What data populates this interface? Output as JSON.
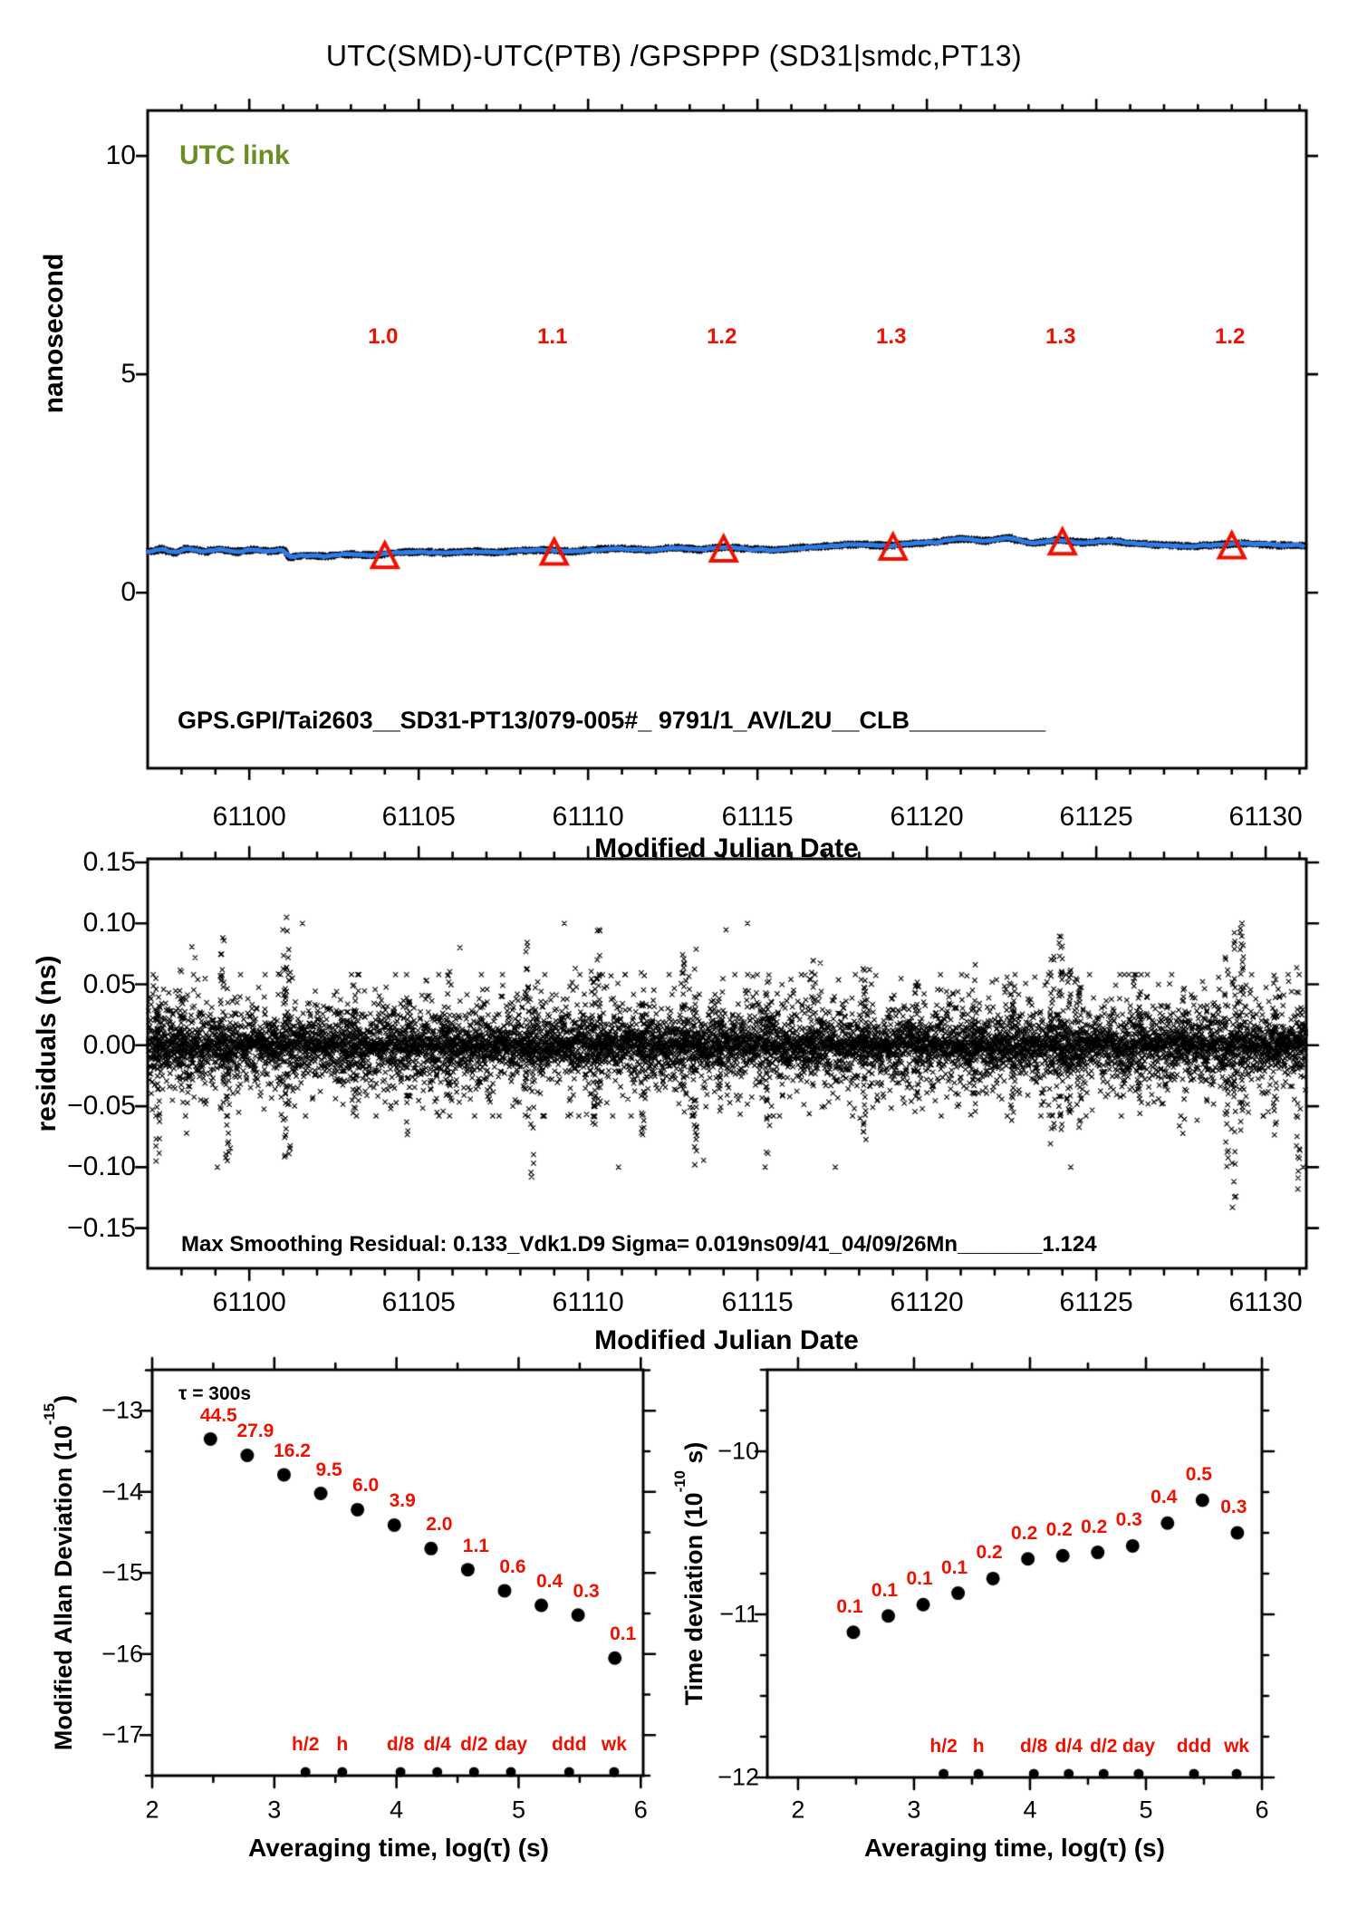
{
  "page_title": "UTC(SMD)-UTC(PTB)  /GPSPPP  (SD31|smdc,PT13)",
  "colors": {
    "accent_red": "#ee1100",
    "line_blue": "#2d7ceb",
    "utc_link_green": "#6b8e23",
    "ink": "#000000",
    "background": "#ffffff"
  },
  "chart_data": [
    {
      "id": "utc-link-trace",
      "type": "line",
      "ylabel": "nanosecond",
      "xlabel": "Modified Julian Date",
      "xlim": [
        61097.0,
        61131.2
      ],
      "ylim": [
        -4.0,
        11.0
      ],
      "xticks": [
        61100,
        61105,
        61110,
        61115,
        61120,
        61125,
        61130
      ],
      "xtick_labels": [
        "61100",
        "61105",
        "61110",
        "61115",
        "61120",
        "61125",
        "61130"
      ],
      "yticks": [
        0,
        5,
        10
      ],
      "ytick_labels": [
        "0",
        "5",
        "10"
      ],
      "annotations": {
        "utc_link": "UTC link",
        "gps_line": "GPS.GPI/Tai2603__SD31-PT13/079-005#_  9791/1_AV/L2U__CLB__________"
      },
      "calibration": {
        "mjd": [
          61104,
          61109,
          61114,
          61119,
          61124,
          61129
        ],
        "labels": [
          "1.0",
          "1.1",
          "1.2",
          "1.3",
          "1.3",
          "1.2"
        ],
        "label_y_ns": 5.85,
        "marker": "open-red-triangle-up"
      },
      "line_anchors": [
        [
          61097.0,
          0.93
        ],
        [
          61097.4,
          1.0
        ],
        [
          61097.8,
          0.92
        ],
        [
          61098.2,
          1.01
        ],
        [
          61098.7,
          0.94
        ],
        [
          61099.1,
          1.0
        ],
        [
          61099.6,
          0.93
        ],
        [
          61100.1,
          0.99
        ],
        [
          61100.6,
          0.95
        ],
        [
          61101.05,
          0.98
        ],
        [
          61101.15,
          0.81
        ],
        [
          61101.6,
          0.86
        ],
        [
          61102.2,
          0.83
        ],
        [
          61102.8,
          0.88
        ],
        [
          61103.6,
          0.86
        ],
        [
          61104.3,
          0.91
        ],
        [
          61105.0,
          0.94
        ],
        [
          61105.8,
          0.91
        ],
        [
          61106.5,
          0.95
        ],
        [
          61107.3,
          0.92
        ],
        [
          61108.0,
          0.96
        ],
        [
          61108.8,
          0.98
        ],
        [
          61109.5,
          0.94
        ],
        [
          61110.2,
          0.99
        ],
        [
          61111.0,
          1.01
        ],
        [
          61111.8,
          0.97
        ],
        [
          61112.6,
          1.03
        ],
        [
          61113.3,
          0.99
        ],
        [
          61114.0,
          1.04
        ],
        [
          61114.8,
          1.0
        ],
        [
          61115.5,
          0.97
        ],
        [
          61116.3,
          1.03
        ],
        [
          61117.1,
          1.07
        ],
        [
          61118.0,
          1.11
        ],
        [
          61118.8,
          1.07
        ],
        [
          61119.5,
          1.12
        ],
        [
          61120.3,
          1.16
        ],
        [
          61121.0,
          1.24
        ],
        [
          61121.7,
          1.18
        ],
        [
          61122.4,
          1.26
        ],
        [
          61123.1,
          1.13
        ],
        [
          61123.9,
          1.21
        ],
        [
          61124.6,
          1.14
        ],
        [
          61125.4,
          1.19
        ],
        [
          61126.2,
          1.12
        ],
        [
          61127.0,
          1.09
        ],
        [
          61127.8,
          1.06
        ],
        [
          61128.6,
          1.1
        ],
        [
          61129.4,
          1.13
        ],
        [
          61130.2,
          1.09
        ],
        [
          61131.2,
          1.08
        ]
      ],
      "noise_band_sigma_ns": 0.013
    },
    {
      "id": "residuals",
      "type": "scatter",
      "ylabel": "residuals (ns)",
      "xlabel": "Modified Julian Date",
      "xlim": [
        61097.0,
        61131.2
      ],
      "ylim": [
        -0.183,
        0.153
      ],
      "xticks": [
        61100,
        61105,
        61110,
        61115,
        61120,
        61125,
        61130
      ],
      "xtick_labels": [
        "61100",
        "61105",
        "61110",
        "61115",
        "61120",
        "61125",
        "61130"
      ],
      "yticks": [
        0.15,
        0.1,
        0.05,
        0.0,
        -0.05,
        -0.1,
        -0.15
      ],
      "ytick_labels": [
        "0.15",
        "0.10",
        "0.05",
        "0.00",
        "−0.05",
        "−0.10",
        "−0.15"
      ],
      "annotations": {
        "note": "Max Smoothing Residual: 0.133_Vdk1.D9  Sigma= 0.019ns09/41_04/09/26Mn_______1.124"
      },
      "sigma_ns": 0.019,
      "max_smoothing_residual_ns": 0.133,
      "marker": "x",
      "outlier_columns": [
        [
          61097.3,
          -0.09,
          0.06
        ],
        [
          61098.0,
          -0.05,
          0.062
        ],
        [
          61099.2,
          -0.055,
          0.09
        ],
        [
          61099.35,
          -0.1,
          0.05
        ],
        [
          61101.05,
          -0.115,
          0.105
        ],
        [
          61101.15,
          -0.09,
          0.1
        ],
        [
          61103.1,
          -0.06,
          0.05
        ],
        [
          61104.7,
          -0.075,
          0.05
        ],
        [
          61105.9,
          -0.05,
          0.065
        ],
        [
          61108.2,
          -0.06,
          0.09
        ],
        [
          61108.35,
          -0.11,
          0.06
        ],
        [
          61110.15,
          -0.065,
          0.065
        ],
        [
          61110.3,
          -0.05,
          0.095
        ],
        [
          61111.6,
          -0.075,
          0.06
        ],
        [
          61112.8,
          -0.06,
          0.075
        ],
        [
          61113.15,
          -0.1,
          0.09
        ],
        [
          61113.9,
          -0.055,
          0.05
        ],
        [
          61115.3,
          -0.09,
          0.06
        ],
        [
          61116.6,
          -0.055,
          0.075
        ],
        [
          61118.15,
          -0.08,
          0.065
        ],
        [
          61119.7,
          -0.06,
          0.055
        ],
        [
          61121.4,
          -0.05,
          0.07
        ],
        [
          61122.55,
          -0.065,
          0.06
        ],
        [
          61123.7,
          -0.085,
          0.075
        ],
        [
          61123.95,
          -0.07,
          0.09
        ],
        [
          61124.2,
          -0.06,
          0.065
        ],
        [
          61124.5,
          -0.09,
          0.05
        ],
        [
          61126.3,
          -0.05,
          0.06
        ],
        [
          61127.6,
          -0.085,
          0.055
        ],
        [
          61128.85,
          -0.1,
          0.075
        ],
        [
          61129.05,
          -0.13,
          0.1
        ],
        [
          61129.3,
          -0.08,
          0.1
        ],
        [
          61130.3,
          -0.075,
          0.06
        ],
        [
          61130.95,
          -0.12,
          0.065
        ]
      ],
      "extreme_points": [
        [
          61129.02,
          -0.133
        ],
        [
          61129.12,
          -0.124
        ],
        [
          61130.95,
          -0.118
        ],
        [
          61101.1,
          0.105
        ],
        [
          61129.3,
          0.1
        ],
        [
          61108.33,
          -0.108
        ],
        [
          61097.25,
          -0.095
        ],
        [
          61113.15,
          -0.098
        ]
      ]
    },
    {
      "id": "mdev",
      "type": "scatter",
      "ylabel_prefix": "Modified Allan Deviation (10",
      "ylabel_sup": "-15",
      "ylabel_suffix": ")",
      "xlabel": "Averaging time, log(τ) (s)",
      "xlim": [
        2.0,
        6.02
      ],
      "ylim": [
        -17.5,
        -12.5
      ],
      "xticks": [
        2,
        3,
        4,
        5,
        6
      ],
      "xtick_labels": [
        "2",
        "3",
        "4",
        "5",
        "6"
      ],
      "yticks": [
        -13,
        -14,
        -15,
        -16,
        -17
      ],
      "ytick_labels": [
        "−13",
        "−14",
        "−15",
        "−16",
        "−17"
      ],
      "annotations": {
        "tau_note": "τ = 300s"
      },
      "tau_s": [
        300,
        600,
        1200,
        2400,
        4800,
        9600,
        19200,
        38400,
        76800,
        153600,
        307200,
        614400
      ],
      "log_tau": [
        2.477,
        2.778,
        3.079,
        3.38,
        3.681,
        3.982,
        4.283,
        4.584,
        4.885,
        5.186,
        5.487,
        5.788
      ],
      "mdev_1e15": [
        44.5,
        27.9,
        16.2,
        9.5,
        6.0,
        3.9,
        2.0,
        1.1,
        0.6,
        0.4,
        0.3,
        0.1
      ],
      "point_labels": [
        "44.5",
        "27.9",
        "16.2",
        "9.5",
        "6.0",
        "3.9",
        "2.0",
        "1.1",
        "0.6",
        "0.4",
        "0.3",
        "0.1"
      ],
      "plot_log": [
        -13.35,
        -13.55,
        -13.79,
        -14.02,
        -14.22,
        -14.41,
        -14.7,
        -14.96,
        -15.22,
        -15.4,
        -15.52,
        -16.05
      ],
      "time_marks": [
        {
          "label": "h/2",
          "log_tau": 3.255
        },
        {
          "label": "h",
          "log_tau": 3.556
        },
        {
          "label": "d/8",
          "log_tau": 4.033
        },
        {
          "label": "d/4",
          "log_tau": 4.334
        },
        {
          "label": "d/2",
          "log_tau": 4.635
        },
        {
          "label": "day",
          "log_tau": 4.937
        },
        {
          "label": "ddd",
          "log_tau": 5.414
        },
        {
          "label": "wk",
          "log_tau": 5.782
        }
      ]
    },
    {
      "id": "tdev",
      "type": "scatter",
      "ylabel_prefix": "Time deviation (10",
      "ylabel_sup": "-10",
      "ylabel_suffix": " s)",
      "xlabel": "Averaging time, log(τ) (s)",
      "xlim": [
        1.73,
        6.0
      ],
      "ylim": [
        -12.0,
        -9.5
      ],
      "xticks": [
        2,
        3,
        4,
        5,
        6
      ],
      "xtick_labels": [
        "2",
        "3",
        "4",
        "5",
        "6"
      ],
      "yticks": [
        -10,
        -11,
        -12
      ],
      "ytick_labels": [
        "−10",
        "−11",
        "−12"
      ],
      "log_tau": [
        2.477,
        2.778,
        3.079,
        3.38,
        3.681,
        3.982,
        4.283,
        4.584,
        4.885,
        5.186,
        5.487,
        5.788
      ],
      "point_labels": [
        "0.1",
        "0.1",
        "0.1",
        "0.1",
        "0.2",
        "0.2",
        "0.2",
        "0.2",
        "0.3",
        "0.4",
        "0.5",
        "0.3"
      ],
      "plot_log": [
        -11.11,
        -11.01,
        -10.94,
        -10.87,
        -10.78,
        -10.66,
        -10.64,
        -10.62,
        -10.58,
        -10.44,
        -10.3,
        -10.5
      ],
      "time_marks": [
        {
          "label": "h/2",
          "log_tau": 3.255
        },
        {
          "label": "h",
          "log_tau": 3.556
        },
        {
          "label": "d/8",
          "log_tau": 4.033
        },
        {
          "label": "d/4",
          "log_tau": 4.334
        },
        {
          "label": "d/2",
          "log_tau": 4.635
        },
        {
          "label": "day",
          "log_tau": 4.937
        },
        {
          "label": "ddd",
          "log_tau": 5.414
        },
        {
          "label": "wk",
          "log_tau": 5.782
        }
      ]
    }
  ]
}
